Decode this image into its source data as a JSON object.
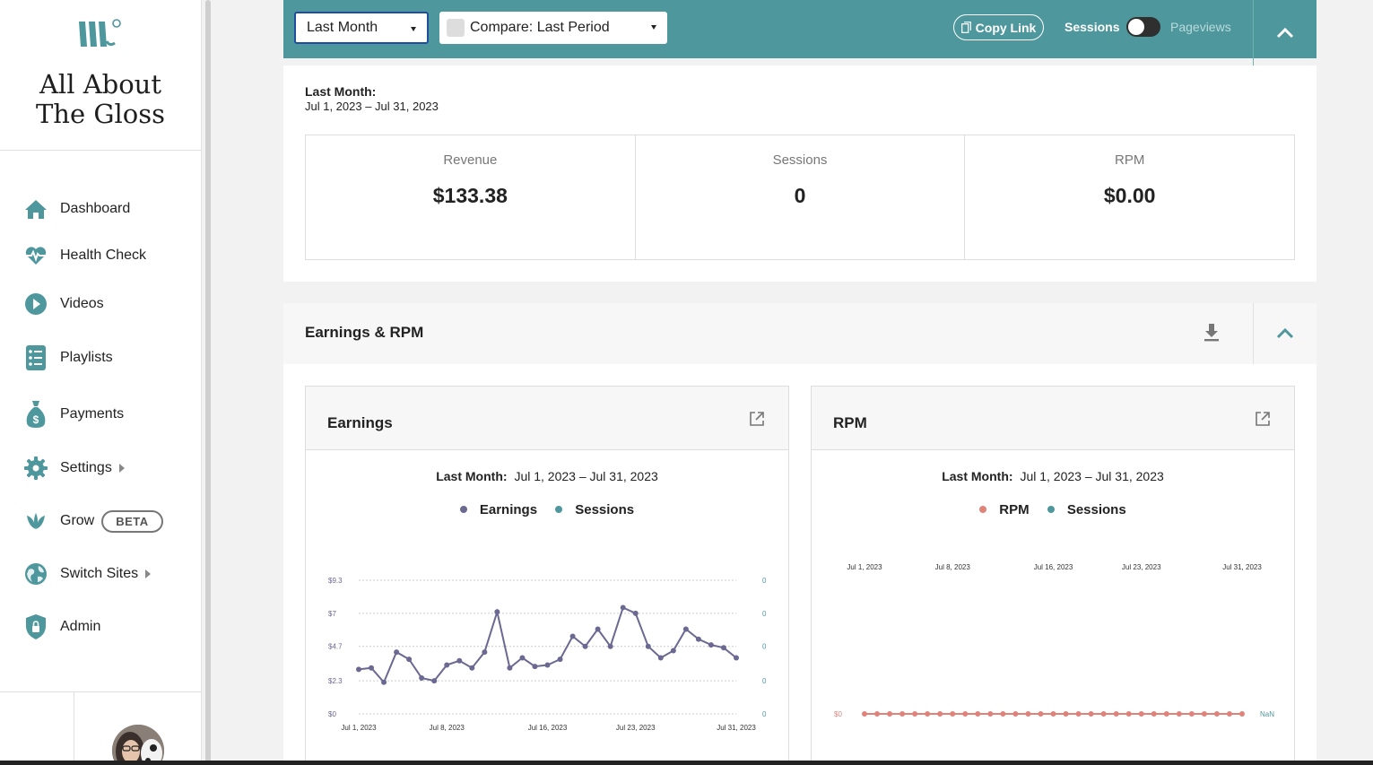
{
  "sidebar": {
    "site_name_line1": "All About",
    "site_name_line2": "The Gloss",
    "items": [
      {
        "label": "Dashboard",
        "icon": "home-icon"
      },
      {
        "label": "Health Check",
        "icon": "heartbeat-icon"
      },
      {
        "label": "Videos",
        "icon": "play-icon"
      },
      {
        "label": "Playlists",
        "icon": "playlist-icon"
      },
      {
        "label": "Payments",
        "icon": "money-bag-icon"
      },
      {
        "label": "Settings",
        "icon": "gear-icon"
      },
      {
        "label": "Grow",
        "icon": "leaf-icon",
        "badge": "BETA"
      },
      {
        "label": "Switch Sites",
        "icon": "globe-icon"
      },
      {
        "label": "Admin",
        "icon": "shield-lock-icon"
      }
    ],
    "accent_color": "#4e979d"
  },
  "toolbar": {
    "date_range": "Last Month",
    "compare": "Compare: Last Period",
    "copy_link": "Copy Link",
    "toggle_left": "Sessions",
    "toggle_right": "Pageviews"
  },
  "summary": {
    "period_title": "Last Month:",
    "period_range": "Jul 1, 2023 – Jul 31, 2023",
    "metrics": [
      {
        "label": "Revenue",
        "value": "$133.38"
      },
      {
        "label": "Sessions",
        "value": "0"
      },
      {
        "label": "RPM",
        "value": "$0.00"
      }
    ]
  },
  "section": {
    "title": "Earnings & RPM"
  },
  "earnings_card": {
    "title": "Earnings",
    "subtitle_label": "Last Month:",
    "subtitle_range": "Jul 1, 2023 – Jul 31, 2023",
    "legend": [
      {
        "name": "Earnings",
        "color": "#6b6891"
      },
      {
        "name": "Sessions",
        "color": "#4e979d"
      }
    ]
  },
  "rpm_card": {
    "title": "RPM",
    "subtitle_label": "Last Month:",
    "subtitle_range": "Jul 1, 2023 – Jul 31, 2023",
    "legend": [
      {
        "name": "RPM",
        "color": "#e0827a"
      },
      {
        "name": "Sessions",
        "color": "#4e979d"
      }
    ]
  },
  "chart_data": [
    {
      "type": "line",
      "title": "Earnings",
      "x_ticks": [
        "Jul 1, 2023",
        "Jul 8, 2023",
        "Jul 16, 2023",
        "Jul 23, 2023",
        "Jul 31, 2023"
      ],
      "y_left_ticks": [
        "$0",
        "$2.3",
        "$4.7",
        "$7",
        "$9.3"
      ],
      "y_right_ticks": [
        "0",
        "0",
        "0",
        "0",
        "0"
      ],
      "ylim": [
        0,
        9.3
      ],
      "series": [
        {
          "name": "Earnings",
          "color": "#6b6891",
          "values": [
            3.1,
            3.2,
            2.2,
            4.3,
            3.8,
            2.5,
            2.3,
            3.4,
            3.7,
            3.2,
            4.3,
            7.1,
            3.2,
            3.9,
            3.3,
            3.4,
            3.8,
            5.4,
            4.7,
            5.9,
            4.7,
            7.4,
            7.0,
            4.7,
            3.9,
            4.4,
            5.9,
            5.2,
            4.8,
            4.6,
            3.9
          ]
        },
        {
          "name": "Sessions",
          "color": "#4e979d",
          "values": []
        }
      ]
    },
    {
      "type": "line",
      "title": "RPM",
      "x_ticks": [
        "Jul 1, 2023",
        "Jul 8, 2023",
        "Jul 16, 2023",
        "Jul 23, 2023",
        "Jul 31, 2023"
      ],
      "y_left_ticks": [
        "$0"
      ],
      "y_right_ticks": [
        "NaN"
      ],
      "series": [
        {
          "name": "RPM",
          "color": "#e0827a",
          "values": [
            0,
            0,
            0,
            0,
            0,
            0,
            0,
            0,
            0,
            0,
            0,
            0,
            0,
            0,
            0,
            0,
            0,
            0,
            0,
            0,
            0,
            0,
            0,
            0,
            0,
            0,
            0,
            0,
            0,
            0,
            0
          ]
        },
        {
          "name": "Sessions",
          "color": "#4e979d",
          "values": []
        }
      ]
    }
  ]
}
